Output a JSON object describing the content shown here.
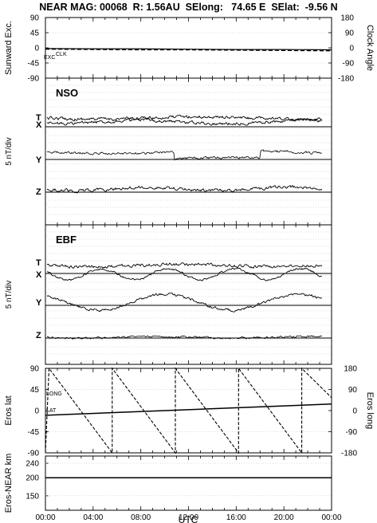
{
  "title": "NEAR MAG: 00068  R: 1.56AU  SElong:   74.65 E  SElat:  -9.56 N",
  "x_axis": {
    "label": "UTC",
    "ticks": [
      "00:00",
      "04:00",
      "08:00",
      "12:00",
      "16:00",
      "20:00",
      "00:00"
    ]
  },
  "colors": {
    "line": "#000000",
    "grid": "#bbbbbb",
    "background": "#ffffff"
  },
  "chart_data": [
    {
      "type": "line",
      "panel": "sunward",
      "ylabel_left": "Sunward Exc.",
      "ylabel_right": "Clock Angle",
      "y_ticks_left": [
        "90",
        "45",
        "0",
        "-45",
        "-90"
      ],
      "y_ticks_right": [
        "180",
        "90",
        "0",
        "-90",
        "-180"
      ],
      "ylim": [
        -90,
        90
      ],
      "annotations": [
        "CLK",
        "EXC"
      ],
      "series": [
        {
          "name": "EXC",
          "style": "solid",
          "x_hours": [
            0,
            4,
            8,
            12,
            16,
            20,
            24
          ],
          "values": [
            -2,
            -3,
            -3,
            -4,
            -5,
            -5,
            -6
          ]
        },
        {
          "name": "CLK",
          "style": "dashed",
          "x_hours": [
            0,
            4,
            8,
            12,
            16,
            20,
            24
          ],
          "values": [
            -4,
            -5,
            -6,
            -6,
            -7,
            -8,
            -9
          ]
        }
      ]
    },
    {
      "type": "line",
      "panel": "NSO",
      "label": "NSO",
      "ylabel": "5 nT/div",
      "components": [
        "T",
        "X",
        "Y",
        "Z"
      ]
    },
    {
      "type": "line",
      "panel": "EBF",
      "label": "EBF",
      "ylabel": "5 nT/div",
      "components": [
        "T",
        "X",
        "Y",
        "Z"
      ]
    },
    {
      "type": "line",
      "panel": "eros",
      "ylabel_left": "Eros lat",
      "ylabel_right": "Eros long",
      "y_ticks_left": [
        "90",
        "45",
        "0",
        "-45",
        "-90"
      ],
      "y_ticks_right": [
        "180",
        "90",
        "0",
        "-90",
        "-180"
      ],
      "annotations": [
        "LONG",
        "LAT"
      ],
      "series": [
        {
          "name": "LAT",
          "style": "solid",
          "x_hours": [
            0,
            24
          ],
          "values": [
            -10,
            14
          ]
        },
        {
          "name": "LONG",
          "style": "dashed",
          "x_hours": [
            0,
            0.3,
            5.6,
            5.6,
            10.9,
            10.9,
            16.2,
            16.2,
            21.5,
            21.5,
            24
          ],
          "values": [
            -180,
            180,
            -180,
            180,
            -180,
            180,
            -180,
            180,
            -180,
            180,
            55
          ]
        }
      ]
    },
    {
      "type": "line",
      "panel": "range",
      "ylabel": "Eros-NEAR km",
      "y_ticks": [
        "240",
        "200",
        "150"
      ],
      "ylim": [
        110,
        260
      ],
      "series": [
        {
          "name": "range",
          "x_hours": [
            0,
            24
          ],
          "values": [
            200,
            200
          ]
        }
      ]
    }
  ]
}
